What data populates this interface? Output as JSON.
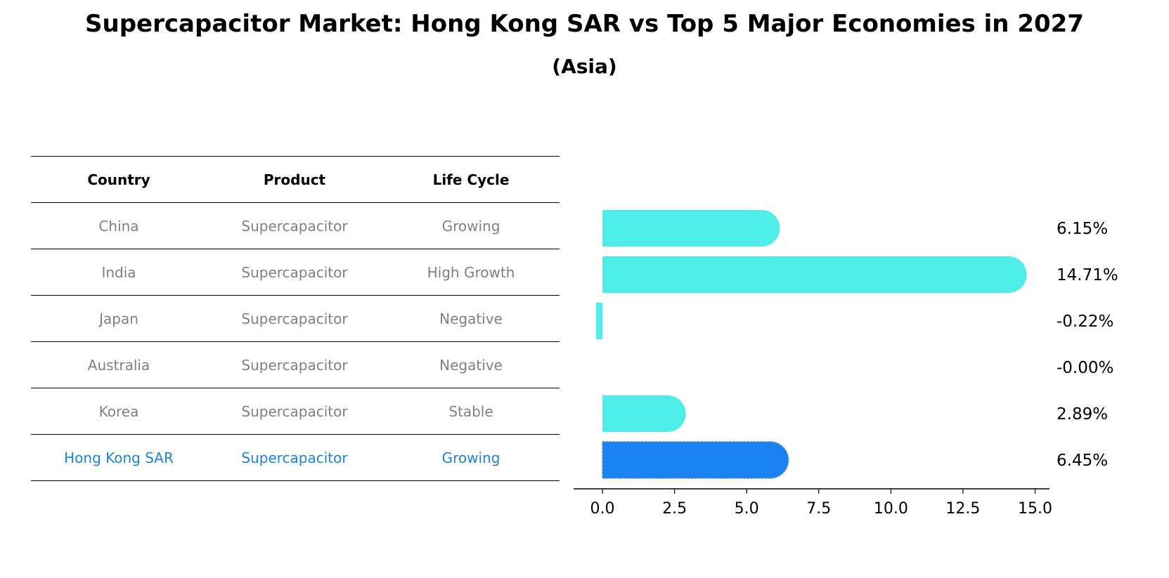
{
  "title": "Supercapacitor Market: Hong Kong SAR vs Top 5 Major Economies in 2027",
  "subtitle": "(Asia)",
  "table": {
    "headers": [
      "Country",
      "Product",
      "Life Cycle"
    ],
    "rows": [
      [
        "China",
        "Supercapacitor",
        "Growing"
      ],
      [
        "India",
        "Supercapacitor",
        "High Growth"
      ],
      [
        "Japan",
        "Supercapacitor",
        "Negative"
      ],
      [
        "Australia",
        "Supercapacitor",
        "Negative"
      ],
      [
        "Korea",
        "Supercapacitor",
        "Stable"
      ],
      [
        "Hong Kong SAR",
        "Supercapacitor",
        "Growing"
      ]
    ]
  },
  "colors": {
    "bar": "#4eede8",
    "highlight": "#1a82f0",
    "highlight_text": "#1a82e0",
    "muted_text": "#808080"
  },
  "chart_data": {
    "type": "bar",
    "orientation": "horizontal",
    "categories": [
      "China",
      "India",
      "Japan",
      "Australia",
      "Korea",
      "Hong Kong SAR"
    ],
    "values": [
      6.15,
      14.71,
      -0.22,
      -0.0,
      2.89,
      6.45
    ],
    "labels": [
      "6.15%",
      "14.71%",
      "-0.22%",
      "-0.00%",
      "2.89%",
      "6.45%"
    ],
    "highlight": "Hong Kong SAR",
    "xlim": [
      -1.0,
      15.5
    ],
    "xticks": [
      0.0,
      2.5,
      5.0,
      7.5,
      10.0,
      12.5,
      15.0
    ],
    "xtick_labels": [
      "0.0",
      "2.5",
      "5.0",
      "7.5",
      "10.0",
      "12.5",
      "15.0"
    ]
  }
}
